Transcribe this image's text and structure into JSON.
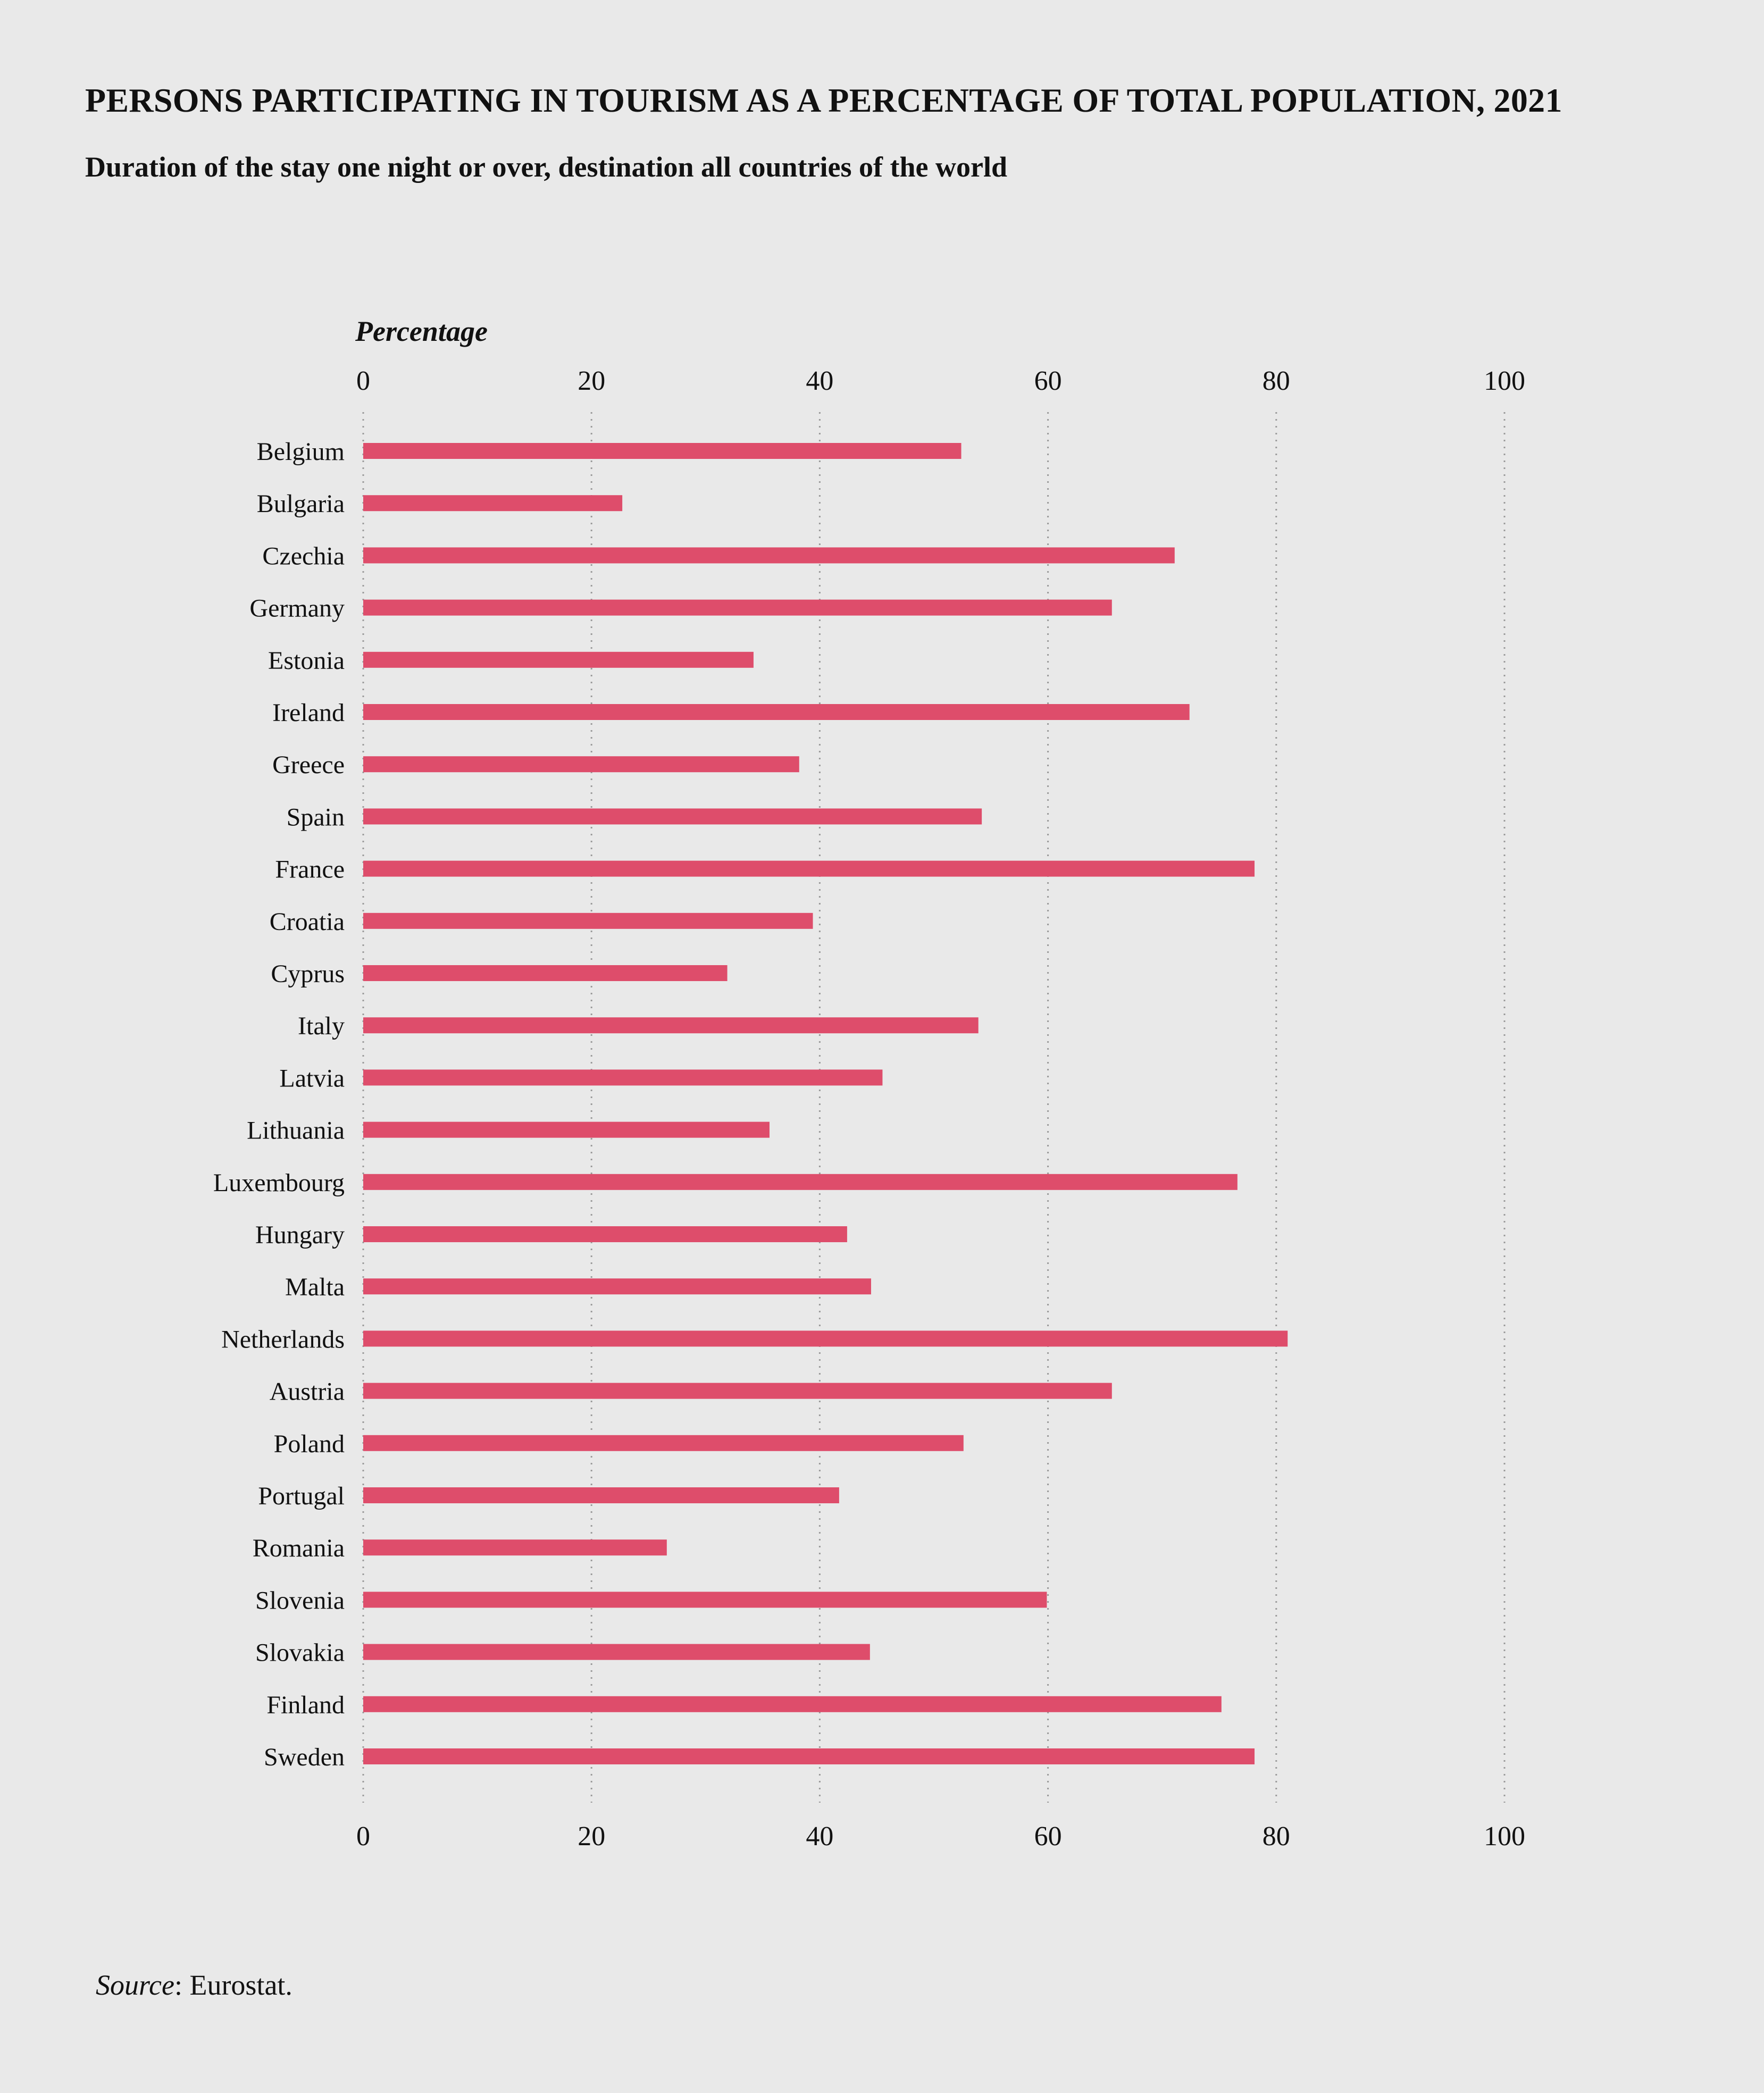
{
  "title": "PERSONS PARTICIPATING IN TOURISM AS A PERCENTAGE OF TOTAL POPULATION, 2021",
  "subtitle": "Duration of the stay one night or over, destination all countries of the world",
  "source": {
    "label": "Source",
    "text": ": Eurostat."
  },
  "colors": {
    "bar": "#de4d6b",
    "background": "#e9e9e9",
    "grid": "#9a9a9a"
  },
  "chart_data": {
    "type": "bar",
    "orientation": "horizontal",
    "xlabel": "Percentage",
    "xlim": [
      0,
      100
    ],
    "xticks": [
      0,
      20,
      40,
      60,
      80,
      100
    ],
    "grid": "vertical dotted",
    "categories": [
      "Belgium",
      "Bulgaria",
      "Czechia",
      "Germany",
      "Estonia",
      "Ireland",
      "Greece",
      "Spain",
      "France",
      "Croatia",
      "Cyprus",
      "Italy",
      "Latvia",
      "Lithuania",
      "Luxembourg",
      "Hungary",
      "Malta",
      "Netherlands",
      "Austria",
      "Poland",
      "Portugal",
      "Romania",
      "Slovenia",
      "Slovakia",
      "Finland",
      "Sweden"
    ],
    "values": [
      52.4,
      22.7,
      71.1,
      65.6,
      34.2,
      72.4,
      38.2,
      54.2,
      78.1,
      39.4,
      31.9,
      53.9,
      45.5,
      35.6,
      76.6,
      42.4,
      44.5,
      81.0,
      65.6,
      52.6,
      41.7,
      26.6,
      59.9,
      44.4,
      75.2,
      78.1
    ]
  }
}
